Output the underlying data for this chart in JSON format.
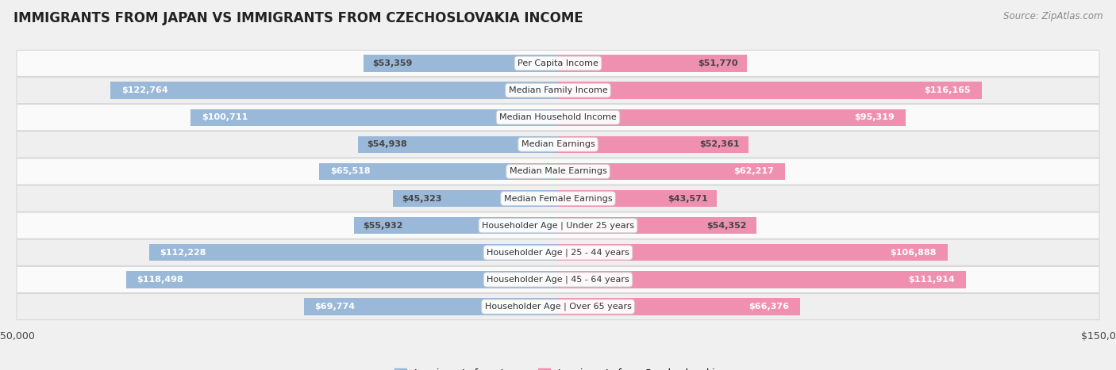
{
  "title": "IMMIGRANTS FROM JAPAN VS IMMIGRANTS FROM CZECHOSLOVAKIA INCOME",
  "source": "Source: ZipAtlas.com",
  "categories": [
    "Per Capita Income",
    "Median Family Income",
    "Median Household Income",
    "Median Earnings",
    "Median Male Earnings",
    "Median Female Earnings",
    "Householder Age | Under 25 years",
    "Householder Age | 25 - 44 years",
    "Householder Age | 45 - 64 years",
    "Householder Age | Over 65 years"
  ],
  "japan_values": [
    53359,
    122764,
    100711,
    54938,
    65518,
    45323,
    55932,
    112228,
    118498,
    69774
  ],
  "czech_values": [
    51770,
    116165,
    95319,
    52361,
    62217,
    43571,
    54352,
    106888,
    111914,
    66376
  ],
  "japan_labels": [
    "$53,359",
    "$122,764",
    "$100,711",
    "$54,938",
    "$65,518",
    "$45,323",
    "$55,932",
    "$112,228",
    "$118,498",
    "$69,774"
  ],
  "czech_labels": [
    "$51,770",
    "$116,165",
    "$95,319",
    "$52,361",
    "$62,217",
    "$43,571",
    "$54,352",
    "$106,888",
    "$111,914",
    "$66,376"
  ],
  "japan_color": "#9ab8d8",
  "japan_color_light": "#b8d0e8",
  "czech_color": "#f090b0",
  "czech_color_light": "#f8b8cc",
  "max_value": 150000,
  "bar_height": 0.62,
  "background_color": "#f0f0f0",
  "row_bg_colors": [
    "#fafafa",
    "#efefef"
  ],
  "row_border_color": "#d8d8d8",
  "label_color_inside": "#ffffff",
  "label_color_outside": "#444444",
  "title_fontsize": 12,
  "source_fontsize": 8.5,
  "label_fontsize": 8,
  "category_fontsize": 8,
  "axis_label_fontsize": 9,
  "legend_fontsize": 9,
  "inside_threshold": 60000
}
